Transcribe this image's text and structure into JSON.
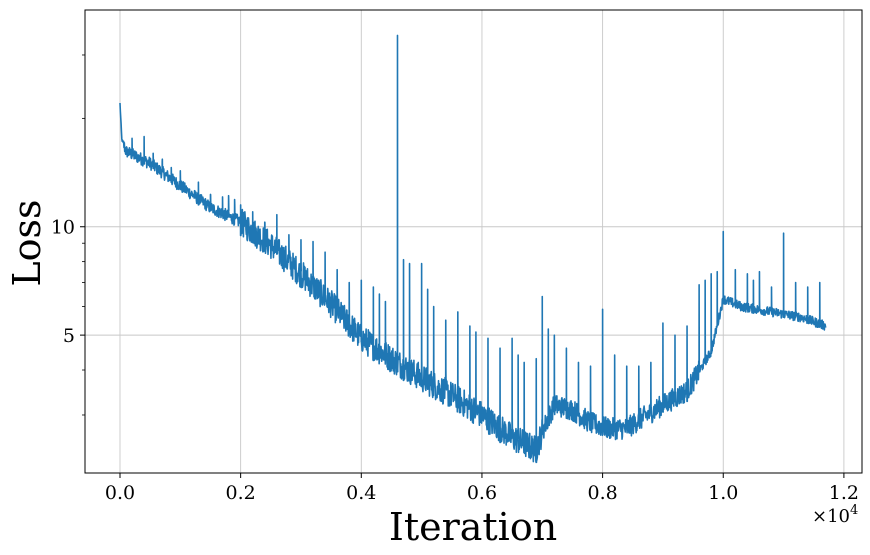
{
  "chart_data": {
    "type": "line",
    "title": "",
    "xlabel": "Iteration",
    "ylabel": "Loss",
    "x_multiplier_label": "×10",
    "x_multiplier_exponent": "4",
    "x_tick_labels": [
      "0.0",
      "0.2",
      "0.4",
      "0.6",
      "0.8",
      "1.0",
      "1.2"
    ],
    "x_ticks": [
      0,
      2000,
      4000,
      6000,
      8000,
      10000,
      12000
    ],
    "y_tick_labels": [
      "5",
      "10"
    ],
    "y_ticks": [
      5,
      10
    ],
    "y_scale": "log",
    "xlim": [
      -580,
      12300
    ],
    "ylim": [
      2.07,
      40
    ],
    "grid": true,
    "line_color": "#1f77b4",
    "series": [
      {
        "trend": [
          [
            0,
            22
          ],
          [
            30,
            17.5
          ],
          [
            100,
            16.2
          ],
          [
            500,
            15.0
          ],
          [
            1000,
            13.0
          ],
          [
            1500,
            11.3
          ],
          [
            2000,
            10.3
          ],
          [
            2500,
            8.9
          ],
          [
            3000,
            7.4
          ],
          [
            3500,
            6.1
          ],
          [
            4000,
            4.9
          ],
          [
            4500,
            4.3
          ],
          [
            5000,
            3.8
          ],
          [
            5500,
            3.4
          ],
          [
            6000,
            3.0
          ],
          [
            6500,
            2.6
          ],
          [
            6900,
            2.4
          ],
          [
            7000,
            2.7
          ],
          [
            7200,
            3.2
          ],
          [
            7500,
            3.1
          ],
          [
            7800,
            2.85
          ],
          [
            8100,
            2.75
          ],
          [
            8400,
            2.75
          ],
          [
            8600,
            2.9
          ],
          [
            9000,
            3.2
          ],
          [
            9400,
            3.5
          ],
          [
            9800,
            4.5
          ],
          [
            10000,
            6.3
          ],
          [
            10300,
            6.0
          ],
          [
            10800,
            5.8
          ],
          [
            11300,
            5.6
          ],
          [
            11700,
            5.3
          ]
        ],
        "spikes": [
          [
            200,
            17.6
          ],
          [
            400,
            17.8
          ],
          [
            550,
            16.0
          ],
          [
            700,
            15.2
          ],
          [
            850,
            14.6
          ],
          [
            1000,
            14.3
          ],
          [
            1300,
            13.3
          ],
          [
            1500,
            12.3
          ],
          [
            1700,
            12.1
          ],
          [
            1800,
            12.2
          ],
          [
            1900,
            11.9
          ],
          [
            2000,
            11.5
          ],
          [
            2200,
            11.0
          ],
          [
            2400,
            10.3
          ],
          [
            2600,
            10.8
          ],
          [
            2800,
            9.5
          ],
          [
            3000,
            9.2
          ],
          [
            3200,
            9.1
          ],
          [
            3400,
            8.5
          ],
          [
            3600,
            7.6
          ],
          [
            3800,
            7.0
          ],
          [
            4000,
            7.1
          ],
          [
            4200,
            6.8
          ],
          [
            4300,
            6.5
          ],
          [
            4400,
            6.2
          ],
          [
            4600,
            34
          ],
          [
            4700,
            8.1
          ],
          [
            4800,
            7.9
          ],
          [
            5000,
            7.9
          ],
          [
            5100,
            6.7
          ],
          [
            5200,
            6.0
          ],
          [
            5400,
            5.5
          ],
          [
            5600,
            5.8
          ],
          [
            5800,
            5.3
          ],
          [
            5900,
            5.1
          ],
          [
            6100,
            4.9
          ],
          [
            6300,
            4.6
          ],
          [
            6500,
            4.9
          ],
          [
            6600,
            4.4
          ],
          [
            6700,
            4.2
          ],
          [
            6900,
            4.3
          ],
          [
            7000,
            6.4
          ],
          [
            7100,
            5.2
          ],
          [
            7200,
            5.0
          ],
          [
            7400,
            4.6
          ],
          [
            7600,
            4.2
          ],
          [
            7800,
            4.1
          ],
          [
            8000,
            5.9
          ],
          [
            8200,
            4.4
          ],
          [
            8400,
            4.1
          ],
          [
            8600,
            4.1
          ],
          [
            8800,
            4.2
          ],
          [
            9000,
            5.4
          ],
          [
            9200,
            5.0
          ],
          [
            9400,
            5.3
          ],
          [
            9600,
            6.9
          ],
          [
            9700,
            7.1
          ],
          [
            9800,
            7.4
          ],
          [
            9900,
            7.5
          ],
          [
            10000,
            9.7
          ],
          [
            10200,
            7.6
          ],
          [
            10400,
            7.4
          ],
          [
            10500,
            7.1
          ],
          [
            10600,
            7.5
          ],
          [
            10800,
            6.8
          ],
          [
            11000,
            9.6
          ],
          [
            11200,
            7.0
          ],
          [
            11400,
            6.8
          ],
          [
            11600,
            7.0
          ]
        ]
      }
    ]
  }
}
